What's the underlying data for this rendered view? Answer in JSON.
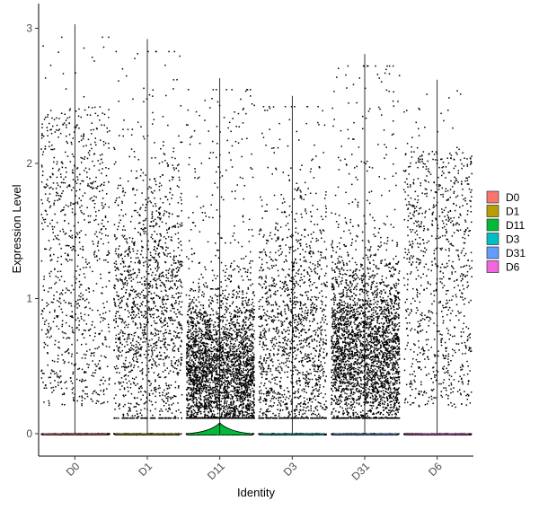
{
  "chart_data": {
    "type": "violin",
    "xlabel": "Identity",
    "ylabel": "Expression Level",
    "ylim": [
      -0.18,
      3.05
    ],
    "yticks": [
      0,
      1,
      2,
      3
    ],
    "categories": [
      "D0",
      "D1",
      "D11",
      "D3",
      "D31",
      "D6"
    ],
    "series": [
      {
        "name": "D0",
        "color": "#F8766D",
        "max": 3.03,
        "n_nonzero": 900,
        "dist": "flat",
        "center": 1.2,
        "violin_peak": 0.0
      },
      {
        "name": "D1",
        "color": "#B79F00",
        "max": 2.92,
        "n_nonzero": 1500,
        "dist": "wide",
        "center": 0.9,
        "violin_peak": 0.0
      },
      {
        "name": "D11",
        "color": "#00BA38",
        "max": 2.63,
        "n_nonzero": 3200,
        "dist": "low",
        "center": 0.45,
        "violin_peak": 0.08
      },
      {
        "name": "D3",
        "color": "#00BFC4",
        "max": 2.5,
        "n_nonzero": 1500,
        "dist": "wide",
        "center": 0.7,
        "violin_peak": 0.0
      },
      {
        "name": "D31",
        "color": "#619CFF",
        "max": 2.81,
        "n_nonzero": 3000,
        "dist": "mid",
        "center": 0.6,
        "violin_peak": 0.0
      },
      {
        "name": "D6",
        "color": "#F564E3",
        "max": 2.62,
        "n_nonzero": 900,
        "dist": "flat",
        "center": 0.9,
        "violin_peak": 0.0
      }
    ],
    "legend": {
      "position": "right",
      "title": ""
    },
    "grid": false
  }
}
